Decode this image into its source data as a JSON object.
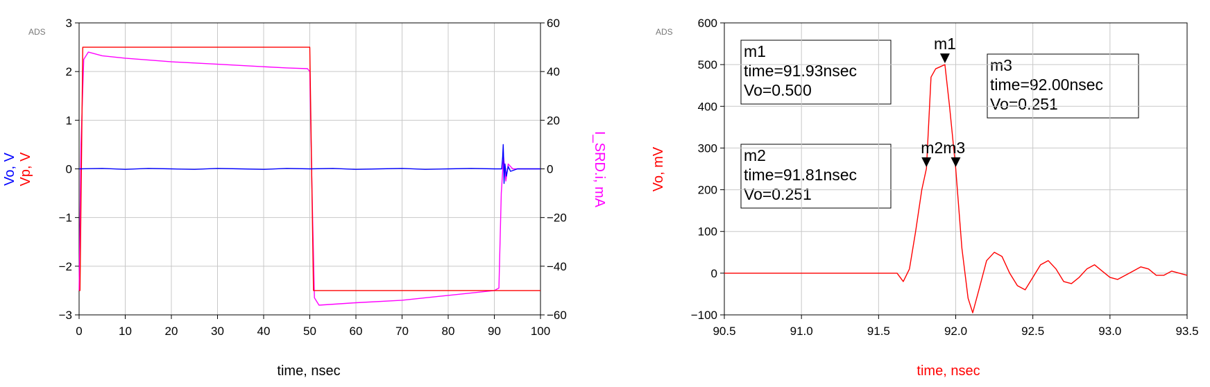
{
  "chart_data": [
    {
      "type": "line",
      "watermark": "ADS",
      "xlabel": "time, nsec",
      "ylabel_left": [
        {
          "text": "Vo, V",
          "color": "#0000ff"
        },
        {
          "text": "Vp, V",
          "color": "#ff0000"
        }
      ],
      "ylabel_right": {
        "text": "I_SRD.i, mA",
        "color": "#ff00ff"
      },
      "xlim": [
        0,
        100
      ],
      "ylim_left": [
        -3,
        3
      ],
      "ylim_right": [
        -60,
        60
      ],
      "x_ticks": [
        0,
        10,
        20,
        30,
        40,
        50,
        60,
        70,
        80,
        90,
        100
      ],
      "y_ticks_left": [
        -3,
        -2,
        -1,
        0,
        1,
        2,
        3
      ],
      "y_ticks_right": [
        -60,
        -40,
        -20,
        0,
        20,
        40,
        60
      ],
      "grid": true,
      "series": [
        {
          "name": "Vp",
          "axis": "left",
          "color": "#ff0000",
          "x": [
            0,
            0.2,
            0.8,
            1,
            49.9,
            50,
            50.8,
            51,
            100
          ],
          "y": [
            -2.5,
            -2.5,
            2.5,
            2.5,
            2.5,
            2.5,
            -2.5,
            -2.5,
            -2.5
          ]
        },
        {
          "name": "Vo",
          "axis": "left",
          "color": "#0000ff",
          "x": [
            0,
            5,
            10,
            15,
            20,
            25,
            30,
            35,
            40,
            45,
            50,
            55,
            60,
            65,
            70,
            75,
            80,
            85,
            90,
            91.2,
            91.6,
            91.8,
            91.93,
            92.0,
            92.1,
            92.3,
            92.6,
            93,
            93.5,
            95,
            100
          ],
          "y": [
            0,
            0.01,
            -0.01,
            0.01,
            0,
            -0.01,
            0.01,
            0,
            -0.01,
            0.01,
            0,
            0.01,
            -0.01,
            0,
            0.01,
            -0.01,
            0,
            0.01,
            0,
            0,
            0,
            0.25,
            0.5,
            0.25,
            -0.3,
            0.1,
            -0.15,
            0.05,
            -0.05,
            0,
            0
          ]
        },
        {
          "name": "I_SRD.i",
          "axis": "right",
          "color": "#ff00ff",
          "x": [
            0,
            0.4,
            1,
            2,
            5,
            10,
            20,
            30,
            40,
            45,
            49.5,
            50,
            50.5,
            51,
            52,
            60,
            70,
            80,
            90,
            91,
            91.5,
            92,
            92.5,
            93,
            94,
            96,
            100
          ],
          "y": [
            -50,
            10,
            45,
            48,
            46.5,
            45.5,
            44,
            43,
            42,
            41.5,
            41.2,
            40,
            -10,
            -53,
            -56,
            -55,
            -54,
            -52,
            -50,
            -49,
            -10,
            5,
            -5,
            2,
            0,
            0,
            0
          ]
        }
      ]
    },
    {
      "type": "line",
      "watermark": "ADS",
      "xlabel": "time, nsec",
      "ylabel": "Vo, mV",
      "label_color": "#ff0000",
      "xlim": [
        90.5,
        93.5
      ],
      "ylim": [
        -100,
        600
      ],
      "x_ticks": [
        "90.5",
        "91.0",
        "91.5",
        "92.0",
        "92.5",
        "93.0",
        "93.5"
      ],
      "y_ticks": [
        -100,
        0,
        100,
        200,
        300,
        400,
        500,
        600
      ],
      "grid": true,
      "series": [
        {
          "name": "Vo",
          "color": "#ff0000",
          "x": [
            90.5,
            91.0,
            91.5,
            91.62,
            91.66,
            91.7,
            91.74,
            91.78,
            91.81,
            91.84,
            91.87,
            91.9,
            91.93,
            91.96,
            92.0,
            92.04,
            92.08,
            92.11,
            92.15,
            92.2,
            92.25,
            92.3,
            92.35,
            92.4,
            92.45,
            92.5,
            92.55,
            92.6,
            92.65,
            92.7,
            92.75,
            92.8,
            92.85,
            92.9,
            92.95,
            93.0,
            93.05,
            93.1,
            93.15,
            93.2,
            93.25,
            93.3,
            93.35,
            93.4,
            93.45,
            93.5
          ],
          "y": [
            0,
            0,
            0,
            0,
            -20,
            10,
            100,
            200,
            251,
            470,
            490,
            495,
            500,
            400,
            251,
            60,
            -60,
            -95,
            -40,
            30,
            50,
            40,
            0,
            -30,
            -40,
            -10,
            20,
            30,
            10,
            -20,
            -25,
            -10,
            10,
            20,
            5,
            -10,
            -15,
            -5,
            5,
            15,
            10,
            -5,
            -5,
            5,
            0,
            -5
          ]
        }
      ],
      "markers": [
        {
          "name": "m1",
          "time": "91.93nsec",
          "value": "Vo=0.500",
          "x": 91.93,
          "y": 500
        },
        {
          "name": "m2",
          "time": "91.81nsec",
          "value": "Vo=0.251",
          "x": 91.81,
          "y": 251
        },
        {
          "name": "m3",
          "time": "92.00nsec",
          "value": "Vo=0.251",
          "x": 92.0,
          "y": 251
        }
      ],
      "marker_pointer_labels": [
        "m1",
        "m2",
        "m3"
      ]
    }
  ]
}
